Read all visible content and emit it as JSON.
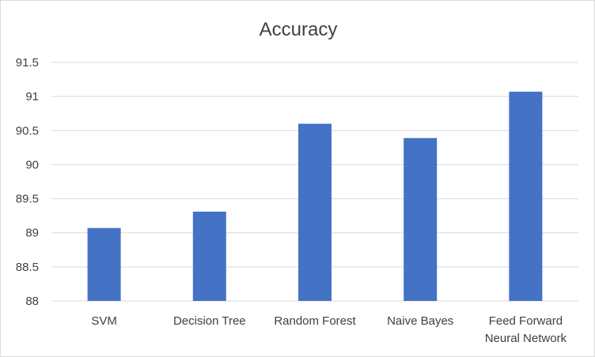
{
  "chart_data": {
    "type": "bar",
    "title": "Accuracy",
    "xlabel": "",
    "ylabel": "",
    "categories": [
      "SVM",
      "Decision Tree",
      "Random Forest",
      "Naive Bayes",
      "Feed Forward Neural Network"
    ],
    "category_lines": [
      [
        "SVM"
      ],
      [
        "Decision Tree"
      ],
      [
        "Random Forest"
      ],
      [
        "Naive Bayes"
      ],
      [
        "Feed Forward",
        "Neural Network"
      ]
    ],
    "values": [
      89.07,
      89.31,
      90.6,
      90.39,
      91.07
    ],
    "ylim": [
      88,
      91.5
    ],
    "yticks": [
      "88",
      "88.5",
      "89",
      "89.5",
      "90",
      "90.5",
      "91",
      "91.5"
    ],
    "ytick_values": [
      88,
      88.5,
      89,
      89.5,
      90,
      90.5,
      91,
      91.5
    ],
    "grid": true,
    "legend": "none",
    "bar_color": "#4472c4",
    "grid_color": "#d9d9d9"
  }
}
